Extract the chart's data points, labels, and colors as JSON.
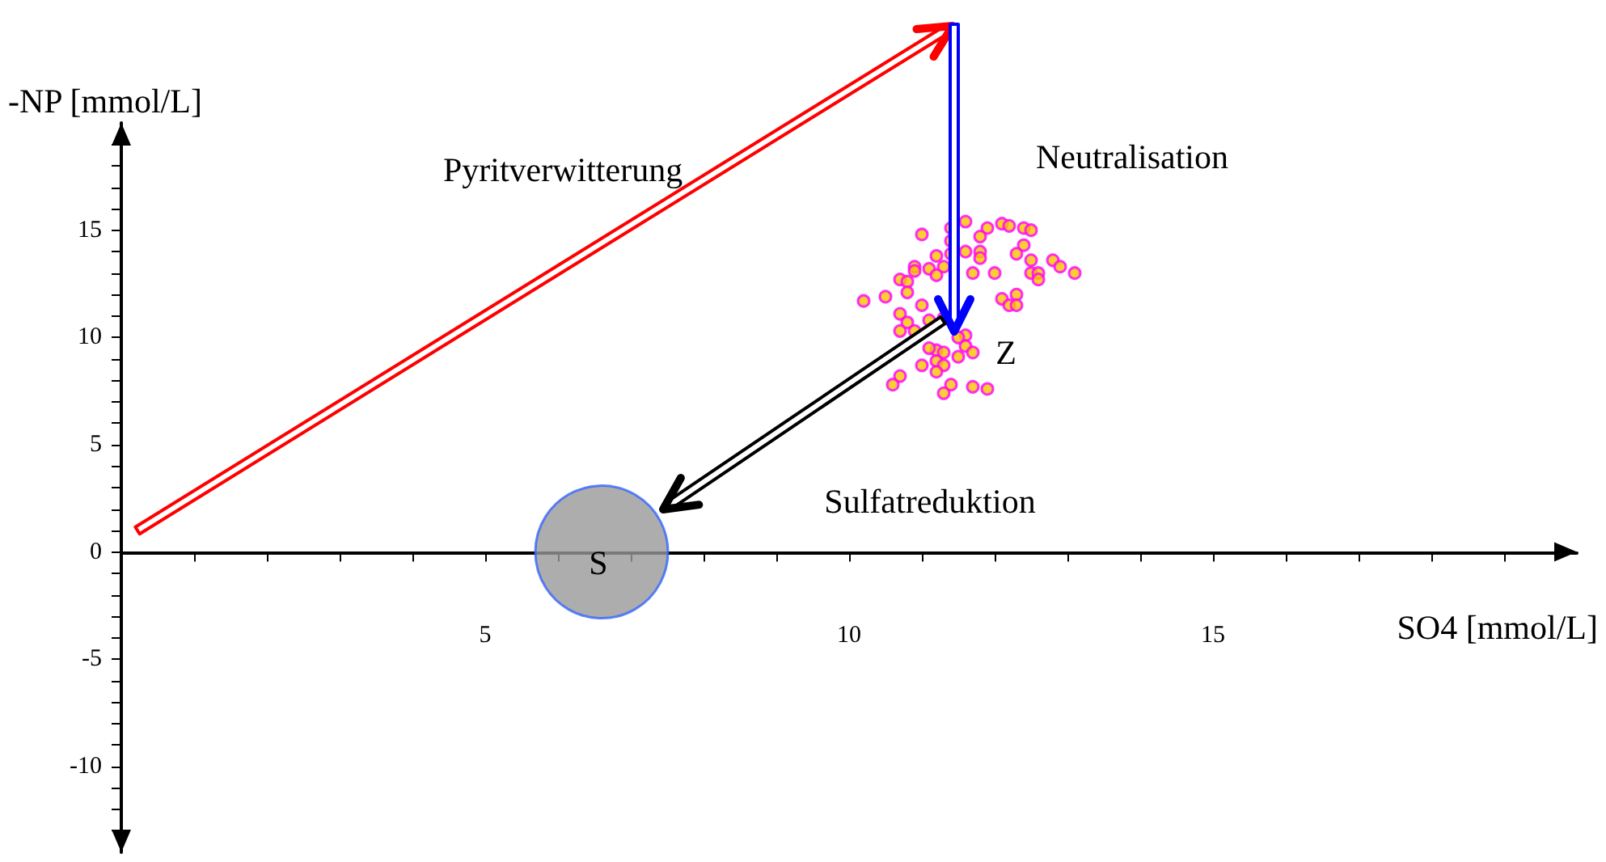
{
  "chart_data": {
    "type": "scatter",
    "xlabel": "SO4 [mmol/L]",
    "ylabel": "-NP [mmol/L]",
    "xlim": [
      0,
      20
    ],
    "ylim": [
      -14,
      20
    ],
    "xticks": [
      {
        "value": 1,
        "label": null
      },
      {
        "value": 2,
        "label": null
      },
      {
        "value": 3,
        "label": null
      },
      {
        "value": 4,
        "label": null
      },
      5,
      {
        "value": 6,
        "label": null
      },
      {
        "value": 7,
        "label": null
      },
      {
        "value": 8,
        "label": null
      },
      {
        "value": 9,
        "label": null
      },
      10,
      {
        "value": 11,
        "label": null
      },
      {
        "value": 12,
        "label": null
      },
      {
        "value": 13,
        "label": null
      },
      {
        "value": 14,
        "label": null
      },
      15,
      {
        "value": 16,
        "label": null
      },
      {
        "value": 17,
        "label": null
      },
      {
        "value": 18,
        "label": null
      },
      {
        "value": 19,
        "label": null
      }
    ],
    "yticks": [
      {
        "value": -13,
        "label": null
      },
      {
        "value": -12,
        "label": null
      },
      {
        "value": -11,
        "label": null
      },
      -10,
      {
        "value": -9,
        "label": null
      },
      {
        "value": -8,
        "label": null
      },
      {
        "value": -7,
        "label": null
      },
      {
        "value": -6,
        "label": null
      },
      -5,
      {
        "value": -4,
        "label": null
      },
      {
        "value": -3,
        "label": null
      },
      {
        "value": -2,
        "label": null
      },
      {
        "value": -1,
        "label": null
      },
      0,
      {
        "value": 1,
        "label": null
      },
      {
        "value": 2,
        "label": null
      },
      {
        "value": 3,
        "label": null
      },
      {
        "value": 4,
        "label": null
      },
      5,
      {
        "value": 6,
        "label": null
      },
      {
        "value": 7,
        "label": null
      },
      {
        "value": 8,
        "label": null
      },
      {
        "value": 9,
        "label": null
      },
      10,
      {
        "value": 11,
        "label": null
      },
      {
        "value": 12,
        "label": null
      },
      {
        "value": 13,
        "label": null
      },
      {
        "value": 14,
        "label": null
      },
      15,
      {
        "value": 16,
        "label": null
      },
      {
        "value": 17,
        "label": null
      },
      {
        "value": 18,
        "label": null
      },
      {
        "value": 19,
        "label": null
      }
    ],
    "series": [
      {
        "marker": "circle",
        "color": "#ffc000",
        "x": [
          11.6,
          11.4,
          11.0,
          11.9,
          12.1,
          12.2,
          12.4,
          12.5,
          11.8,
          11.4,
          12.4,
          12.3,
          11.8,
          11.8,
          11.6,
          11.4,
          11.2,
          11.3,
          11.1,
          10.9,
          10.9,
          11.7,
          12.0,
          12.5,
          12.8,
          12.9,
          13.1,
          12.5,
          12.6,
          12.6,
          10.7,
          10.8,
          11.2,
          10.8,
          10.5,
          10.2,
          12.1,
          12.3,
          12.2,
          12.3,
          11.0,
          10.7,
          10.8,
          10.7,
          10.9,
          11.1,
          11.3,
          11.6,
          11.6,
          11.5,
          11.2,
          11.1,
          11.3,
          11.5,
          11.7,
          11.2,
          11.0,
          11.3,
          11.2,
          10.7,
          10.6,
          11.4,
          11.7,
          11.9,
          11.3
        ],
        "values": [
          15.4,
          15.1,
          14.8,
          15.1,
          15.3,
          15.2,
          15.1,
          15.0,
          14.7,
          14.5,
          14.3,
          13.9,
          14.0,
          13.7,
          14.0,
          13.9,
          13.8,
          13.3,
          13.2,
          13.3,
          13.1,
          13.0,
          13.0,
          13.6,
          13.6,
          13.3,
          13.0,
          13.0,
          13.0,
          12.7,
          12.7,
          12.6,
          12.9,
          12.1,
          11.9,
          11.7,
          11.8,
          12.0,
          11.5,
          11.5,
          11.5,
          11.1,
          10.7,
          10.3,
          10.3,
          10.8,
          10.9,
          10.1,
          9.6,
          10.0,
          9.4,
          9.5,
          9.3,
          9.1,
          9.3,
          8.9,
          8.7,
          8.7,
          8.4,
          8.2,
          7.8,
          7.8,
          7.7,
          7.6,
          7.4
        ]
      },
      {
        "type": "bubble",
        "marker": "circle",
        "color": "#999999",
        "x": [
          6.6
        ],
        "values": [
          0
        ],
        "sizes": [
          1
        ]
      }
    ],
    "annotations": [
      "Pyritverwitterung",
      "Neutralisation",
      "Sulfatreduktion",
      "Z",
      "S"
    ]
  }
}
